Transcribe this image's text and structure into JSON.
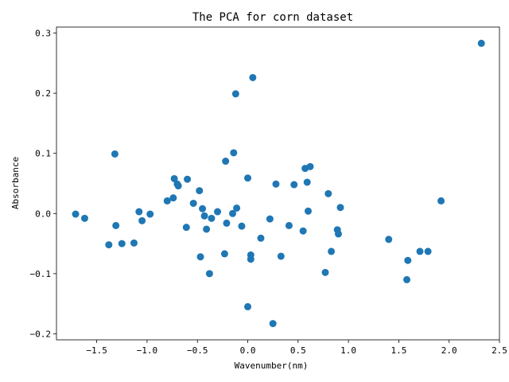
{
  "chart_data": {
    "type": "scatter",
    "title": "The  PCA for corn dataset",
    "xlabel": "Wavenumber(nm)",
    "ylabel": "Absorbance",
    "xlim": [
      -1.9,
      2.5
    ],
    "ylim": [
      -0.21,
      0.31
    ],
    "xticks": [
      -1.5,
      -1.0,
      -0.5,
      0.0,
      0.5,
      1.0,
      1.5,
      2.0,
      2.5
    ],
    "xtick_labels": [
      "−1.5",
      "−1.0",
      "−0.5",
      "0.0",
      "0.5",
      "1.0",
      "1.5",
      "2.0",
      "2.5"
    ],
    "yticks": [
      -0.2,
      -0.1,
      0.0,
      0.1,
      0.2,
      0.3
    ],
    "ytick_labels": [
      "−0.2",
      "−0.1",
      "0.0",
      "0.1",
      "0.2",
      "0.3"
    ],
    "grid": false,
    "marker_color": "#1f77b4",
    "points": [
      {
        "x": -1.71,
        "y": -0.001
      },
      {
        "x": -1.62,
        "y": -0.008
      },
      {
        "x": -1.38,
        "y": -0.052
      },
      {
        "x": -1.32,
        "y": 0.099
      },
      {
        "x": -1.31,
        "y": -0.02
      },
      {
        "x": -1.25,
        "y": -0.05
      },
      {
        "x": -1.13,
        "y": -0.049
      },
      {
        "x": -1.08,
        "y": 0.003
      },
      {
        "x": -1.05,
        "y": -0.012
      },
      {
        "x": -0.97,
        "y": -0.001
      },
      {
        "x": -0.8,
        "y": 0.021
      },
      {
        "x": -0.74,
        "y": 0.026
      },
      {
        "x": -0.73,
        "y": 0.058
      },
      {
        "x": -0.7,
        "y": 0.049
      },
      {
        "x": -0.69,
        "y": 0.046
      },
      {
        "x": -0.61,
        "y": -0.023
      },
      {
        "x": -0.6,
        "y": 0.057
      },
      {
        "x": -0.54,
        "y": 0.017
      },
      {
        "x": -0.48,
        "y": 0.038
      },
      {
        "x": -0.47,
        "y": -0.072
      },
      {
        "x": -0.45,
        "y": 0.008
      },
      {
        "x": -0.43,
        "y": -0.004
      },
      {
        "x": -0.41,
        "y": -0.026
      },
      {
        "x": -0.38,
        "y": -0.1
      },
      {
        "x": -0.36,
        "y": -0.008
      },
      {
        "x": -0.3,
        "y": 0.003
      },
      {
        "x": -0.23,
        "y": -0.067
      },
      {
        "x": -0.22,
        "y": 0.087
      },
      {
        "x": -0.21,
        "y": -0.016
      },
      {
        "x": -0.15,
        "y": 0.0
      },
      {
        "x": -0.14,
        "y": 0.101
      },
      {
        "x": -0.12,
        "y": 0.199
      },
      {
        "x": -0.11,
        "y": 0.009
      },
      {
        "x": -0.06,
        "y": -0.021
      },
      {
        "x": 0.0,
        "y": 0.059
      },
      {
        "x": 0.0,
        "y": -0.155
      },
      {
        "x": 0.03,
        "y": -0.069
      },
      {
        "x": 0.03,
        "y": -0.076
      },
      {
        "x": 0.05,
        "y": 0.226
      },
      {
        "x": 0.13,
        "y": -0.041
      },
      {
        "x": 0.22,
        "y": -0.009
      },
      {
        "x": 0.25,
        "y": -0.183
      },
      {
        "x": 0.28,
        "y": 0.049
      },
      {
        "x": 0.33,
        "y": -0.071
      },
      {
        "x": 0.41,
        "y": -0.02
      },
      {
        "x": 0.46,
        "y": 0.048
      },
      {
        "x": 0.55,
        "y": -0.029
      },
      {
        "x": 0.57,
        "y": 0.075
      },
      {
        "x": 0.59,
        "y": 0.052
      },
      {
        "x": 0.6,
        "y": 0.004
      },
      {
        "x": 0.62,
        "y": 0.078
      },
      {
        "x": 0.77,
        "y": -0.098
      },
      {
        "x": 0.8,
        "y": 0.033
      },
      {
        "x": 0.83,
        "y": -0.063
      },
      {
        "x": 0.89,
        "y": -0.027
      },
      {
        "x": 0.9,
        "y": -0.034
      },
      {
        "x": 0.92,
        "y": 0.01
      },
      {
        "x": 1.4,
        "y": -0.043
      },
      {
        "x": 1.58,
        "y": -0.11
      },
      {
        "x": 1.59,
        "y": -0.078
      },
      {
        "x": 1.71,
        "y": -0.063
      },
      {
        "x": 1.79,
        "y": -0.063
      },
      {
        "x": 1.92,
        "y": 0.021
      },
      {
        "x": 2.32,
        "y": 0.283
      }
    ]
  }
}
